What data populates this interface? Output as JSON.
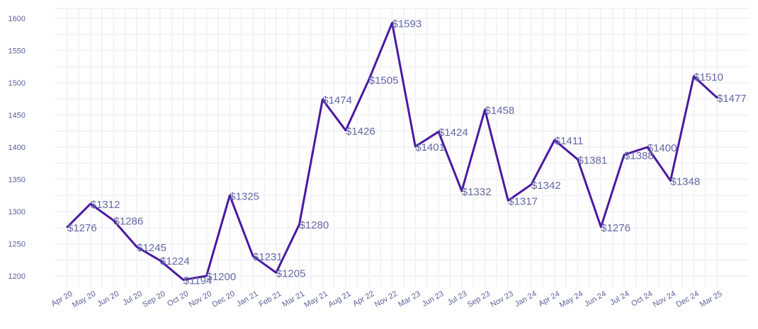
{
  "chart_data": {
    "type": "line",
    "title": "",
    "xlabel": "",
    "ylabel": "",
    "categories": [
      "Apr 20",
      "May 20",
      "Jun 20",
      "Jul 20",
      "Sep 20",
      "Oct 20",
      "Nov 20",
      "Dec 20",
      "Jan 21",
      "Feb 21",
      "Mar 21",
      "May 21",
      "Aug 21",
      "Apr 22",
      "Nov 22",
      "Mar 23",
      "Jun 23",
      "Jul 23",
      "Sep 23",
      "Nov 23",
      "Jan 24",
      "Apr 24",
      "May 24",
      "Jun 24",
      "Jul 24",
      "Oct 24",
      "Nov 24",
      "Dec 24",
      "Mar 25"
    ],
    "series": [
      {
        "values": [
          1276,
          1312,
          1286,
          1245,
          1224,
          1194,
          1200,
          1325,
          1231,
          1205,
          1280,
          1474,
          1426,
          1505,
          1593,
          1401,
          1424,
          1332,
          1458,
          1317,
          1342,
          1411,
          1381,
          1276,
          1388,
          1400,
          1348,
          1510,
          1477
        ],
        "labels": [
          "$1276",
          "$1312",
          "$1286",
          "$1245",
          "$1224",
          "$1194",
          "$1200",
          "$1325",
          "$1231",
          "$1205",
          "$1280",
          "$1474",
          "$1426",
          "$1505",
          "$1593",
          "$1401",
          "$1424",
          "$1332",
          "$1458",
          "$1317",
          "$1342",
          "$1411",
          "$1381",
          "$1276",
          "$1388",
          "$1400",
          "$1348",
          "$1510",
          "$1477"
        ],
        "color": "#4a1aa0"
      }
    ],
    "ylim": [
      1180,
      1610
    ],
    "yticks": [
      "1200",
      "1250",
      "1300",
      "1350",
      "1400",
      "1450",
      "1500",
      "1550",
      "1600"
    ],
    "grid": true,
    "legend": "none"
  }
}
